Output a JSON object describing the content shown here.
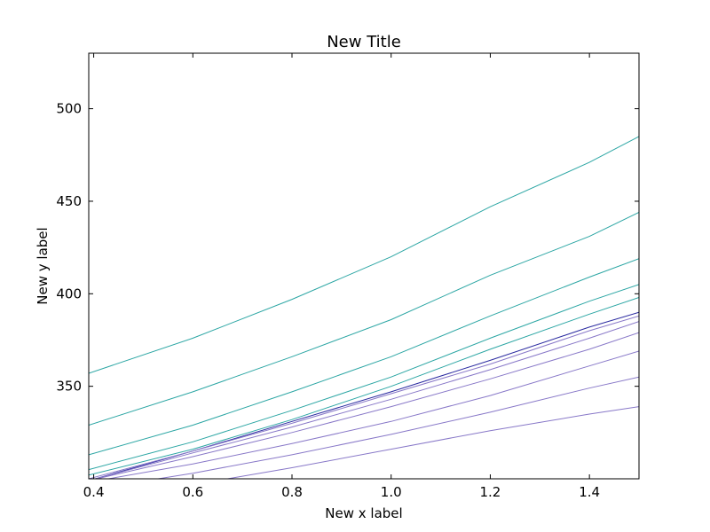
{
  "chart_data": {
    "type": "line",
    "title": "New Title",
    "xlabel": "New x label",
    "ylabel": "New y label",
    "xlim": [
      0.39,
      1.5
    ],
    "ylim": [
      300,
      530
    ],
    "xticks": [
      0.4,
      0.6,
      0.8,
      1.0,
      1.2,
      1.4
    ],
    "xtick_labels": [
      "0.4",
      "0.6",
      "0.8",
      "1.0",
      "1.2",
      "1.4"
    ],
    "yticks": [
      350,
      400,
      450,
      500
    ],
    "ytick_labels": [
      "350",
      "400",
      "450",
      "500"
    ],
    "grid": false,
    "legend": "none",
    "series": [
      {
        "color": "#2ca6a4",
        "points": [
          [
            0.39,
            357
          ],
          [
            0.6,
            376
          ],
          [
            0.8,
            397
          ],
          [
            1.0,
            420
          ],
          [
            1.2,
            447
          ],
          [
            1.4,
            471
          ],
          [
            1.5,
            485
          ]
        ]
      },
      {
        "color": "#2ca6a4",
        "points": [
          [
            0.39,
            329
          ],
          [
            0.6,
            347
          ],
          [
            0.8,
            366
          ],
          [
            1.0,
            386
          ],
          [
            1.2,
            410
          ],
          [
            1.4,
            431
          ],
          [
            1.5,
            444
          ]
        ]
      },
      {
        "color": "#2ca6a4",
        "points": [
          [
            0.39,
            313
          ],
          [
            0.6,
            329
          ],
          [
            0.8,
            347
          ],
          [
            1.0,
            366
          ],
          [
            1.2,
            388
          ],
          [
            1.4,
            409
          ],
          [
            1.5,
            419
          ]
        ]
      },
      {
        "color": "#2ca6a4",
        "points": [
          [
            0.39,
            305
          ],
          [
            0.6,
            320
          ],
          [
            0.8,
            337
          ],
          [
            1.0,
            355
          ],
          [
            1.2,
            376
          ],
          [
            1.4,
            396
          ],
          [
            1.5,
            405
          ]
        ]
      },
      {
        "color": "#2ca6a4",
        "points": [
          [
            0.39,
            302
          ],
          [
            0.6,
            316
          ],
          [
            0.8,
            332
          ],
          [
            1.0,
            350
          ],
          [
            1.2,
            370
          ],
          [
            1.4,
            389
          ],
          [
            1.5,
            398
          ]
        ]
      },
      {
        "color": "#2a2aa0",
        "points": [
          [
            0.39,
            299
          ],
          [
            0.6,
            315
          ],
          [
            0.8,
            331
          ],
          [
            1.0,
            347
          ],
          [
            1.2,
            364
          ],
          [
            1.4,
            382
          ],
          [
            1.5,
            390
          ]
        ]
      },
      {
        "color": "#8878c8",
        "points": [
          [
            0.39,
            300
          ],
          [
            0.6,
            315
          ],
          [
            0.8,
            330
          ],
          [
            1.0,
            346
          ],
          [
            1.2,
            362
          ],
          [
            1.4,
            380
          ],
          [
            1.5,
            388
          ]
        ]
      },
      {
        "color": "#8878c8",
        "points": [
          [
            0.39,
            299
          ],
          [
            0.6,
            314
          ],
          [
            0.8,
            328
          ],
          [
            1.0,
            343
          ],
          [
            1.2,
            359
          ],
          [
            1.4,
            376
          ],
          [
            1.5,
            385
          ]
        ]
      },
      {
        "color": "#8878c8",
        "points": [
          [
            0.39,
            299
          ],
          [
            0.6,
            312
          ],
          [
            0.8,
            325
          ],
          [
            1.0,
            339
          ],
          [
            1.2,
            354
          ],
          [
            1.4,
            370
          ],
          [
            1.5,
            379
          ]
        ]
      },
      {
        "color": "#8878c8",
        "points": [
          [
            0.43,
            300
          ],
          [
            0.6,
            308
          ],
          [
            0.8,
            319
          ],
          [
            1.0,
            331
          ],
          [
            1.2,
            345
          ],
          [
            1.4,
            361
          ],
          [
            1.5,
            369
          ]
        ]
      },
      {
        "color": "#8878c8",
        "points": [
          [
            0.53,
            300
          ],
          [
            0.6,
            303
          ],
          [
            0.8,
            313
          ],
          [
            1.0,
            324
          ],
          [
            1.2,
            336
          ],
          [
            1.4,
            349
          ],
          [
            1.5,
            355
          ]
        ]
      },
      {
        "color": "#8878c8",
        "points": [
          [
            0.67,
            300
          ],
          [
            0.8,
            306
          ],
          [
            1.0,
            316
          ],
          [
            1.2,
            326
          ],
          [
            1.4,
            335
          ],
          [
            1.5,
            339
          ]
        ]
      }
    ]
  }
}
